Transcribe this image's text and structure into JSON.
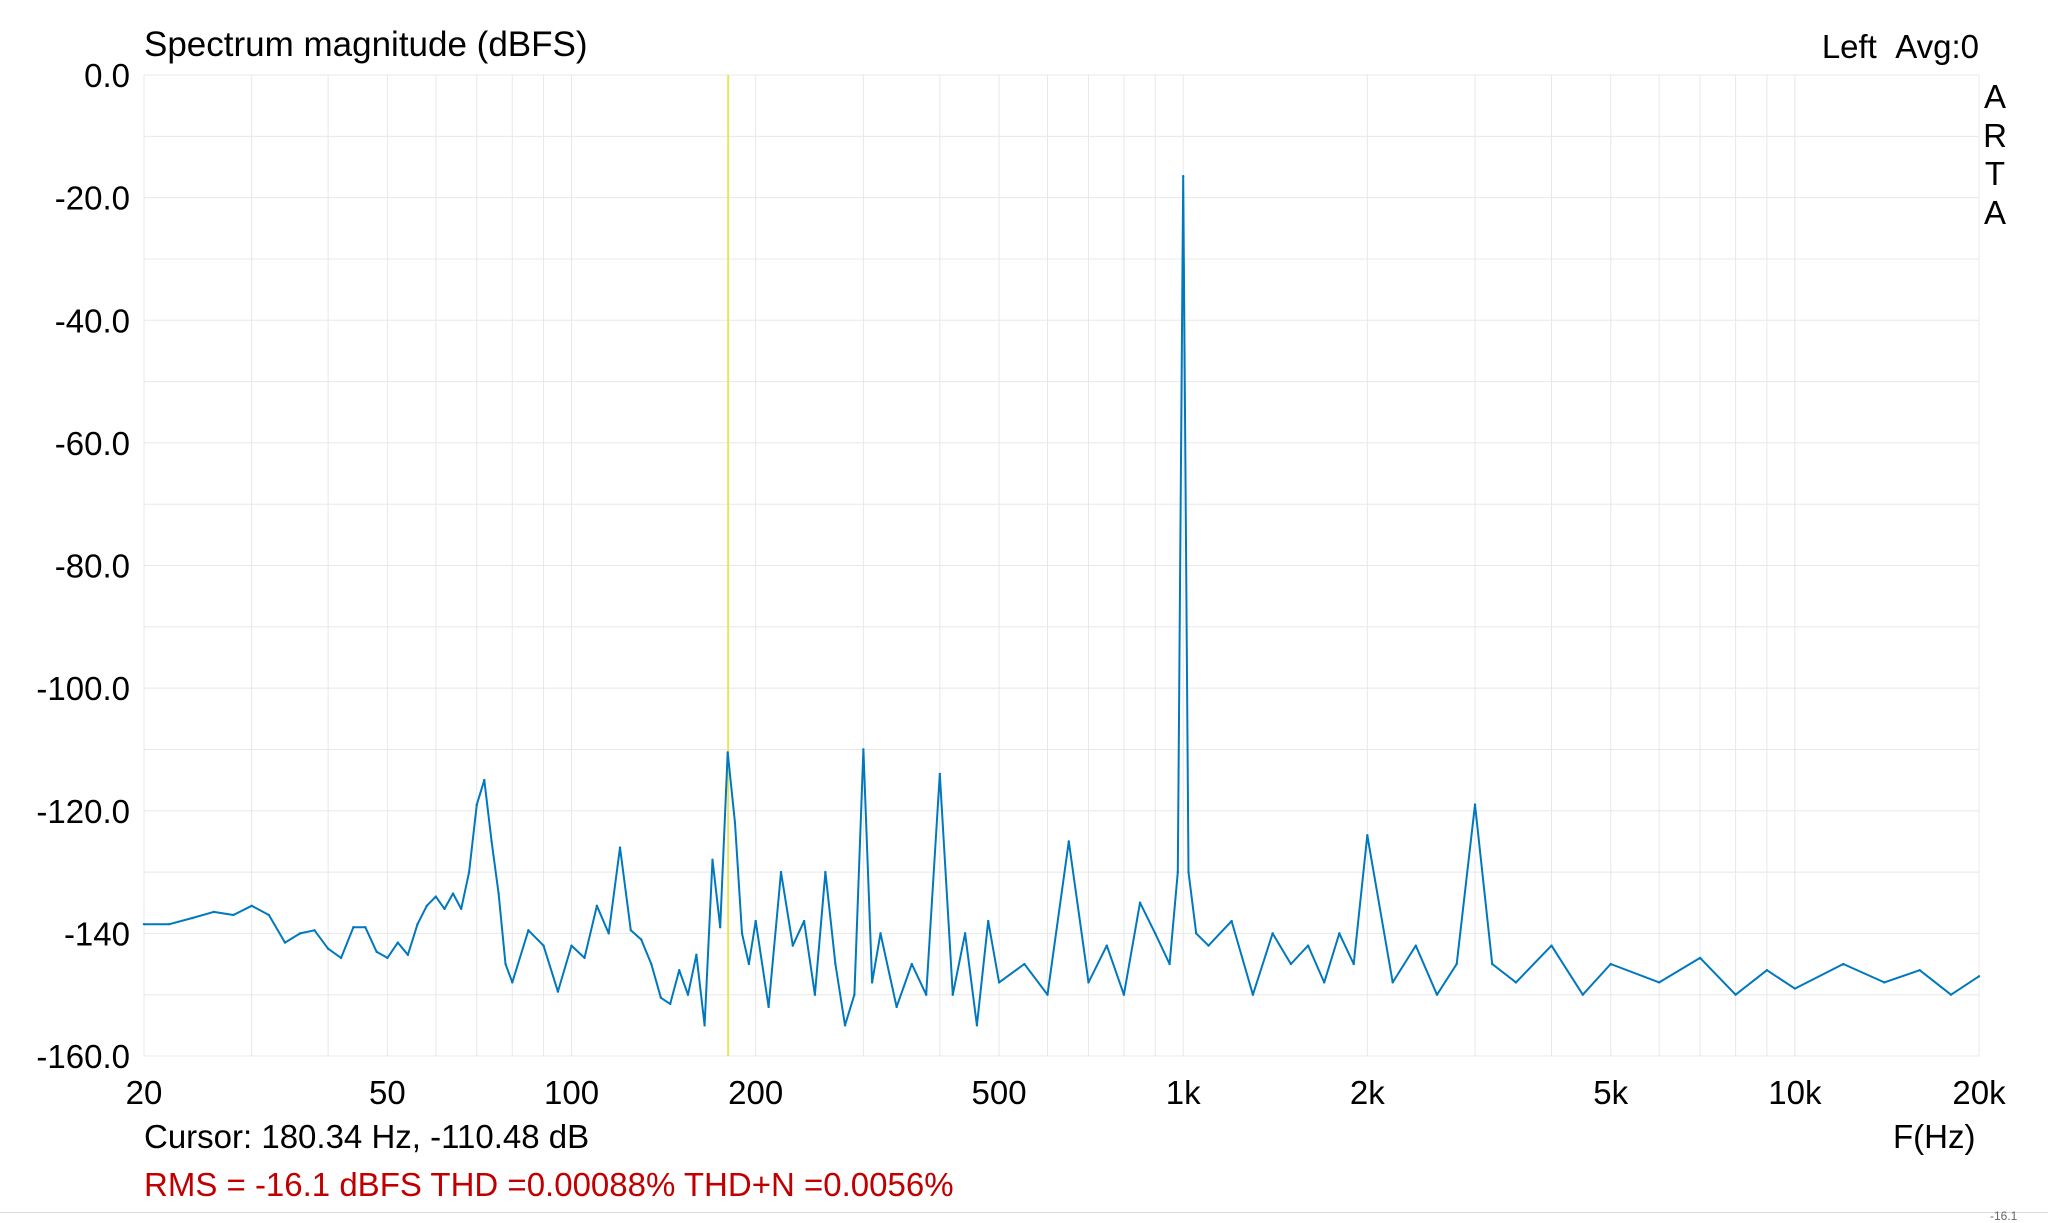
{
  "header": {
    "title": "Spectrum magnitude (dBFS)",
    "channel": "Left",
    "avg": "Avg:0"
  },
  "watermark": [
    "A",
    "R",
    "T",
    "A"
  ],
  "footer": {
    "cursor": "Cursor: 180.34 Hz, -110.48 dB",
    "freq_unit": "F(Hz)",
    "rms_line": "RMS =  -16.1 dBFS THD =0.00088% THD+N =0.0056%",
    "corner_fragment": "-16.1"
  },
  "colors": {
    "trace": "#0078be",
    "cursor": "#e6e65a",
    "grid": "#e8e8e8",
    "plot_bg": "#ffffff",
    "rms_text": "#c00000"
  },
  "chart_data": {
    "type": "line",
    "title": "Spectrum magnitude (dBFS)",
    "xlabel": "F(Hz)",
    "ylabel": "",
    "xscale": "log",
    "xlim": [
      20,
      20000
    ],
    "ylim": [
      -160,
      0
    ],
    "grid": true,
    "yticks": [
      0,
      -20,
      -40,
      -60,
      -80,
      -100,
      -120,
      -140,
      -160
    ],
    "ytick_labels": [
      "0.0",
      "-20.0",
      "-40.0",
      "-60.0",
      "-80.0",
      "-100.0",
      "-120.0",
      "-140",
      "-160.0"
    ],
    "xticks": [
      20,
      50,
      100,
      200,
      500,
      1000,
      2000,
      5000,
      10000,
      20000
    ],
    "xtick_labels": [
      "20",
      "50",
      "100",
      "200",
      "500",
      "1k",
      "2k",
      "5k",
      "10k",
      "20k"
    ],
    "cursor": {
      "x": 180.34,
      "y": -110.48
    },
    "series": [
      {
        "x": [
          20,
          22,
          24,
          26,
          28,
          30,
          32,
          34,
          36,
          38,
          40,
          42,
          44,
          46,
          48,
          50,
          52,
          54,
          56,
          58,
          60,
          62,
          64,
          66,
          68,
          70,
          72,
          74,
          76,
          78,
          80,
          85,
          90,
          95,
          100,
          105,
          110,
          115,
          120,
          125,
          130,
          135,
          140,
          145,
          150,
          155,
          160,
          165,
          170,
          175,
          180,
          185,
          190,
          195,
          200,
          210,
          220,
          230,
          240,
          250,
          260,
          270,
          280,
          290,
          300,
          310,
          320,
          340,
          360,
          380,
          400,
          420,
          440,
          460,
          480,
          500,
          550,
          600,
          650,
          700,
          750,
          800,
          850,
          900,
          950,
          980,
          1000,
          1020,
          1050,
          1100,
          1200,
          1300,
          1400,
          1500,
          1600,
          1700,
          1800,
          1900,
          2000,
          2200,
          2400,
          2600,
          2800,
          3000,
          3200,
          3500,
          4000,
          4500,
          5000,
          6000,
          7000,
          8000,
          9000,
          10000,
          12000,
          14000,
          16000,
          18000,
          20000
        ],
        "y": [
          -138.5,
          -138.5,
          -137.5,
          -136.5,
          -137,
          -135.5,
          -137,
          -141.5,
          -140,
          -139.5,
          -142.5,
          -144,
          -139,
          -139,
          -143,
          -144,
          -141.5,
          -143.5,
          -138.5,
          -135.5,
          -134,
          -136,
          -133.5,
          -136,
          -130,
          -119,
          -115,
          -125,
          -133.5,
          -145,
          -148,
          -139.5,
          -142,
          -149.5,
          -142,
          -144,
          -135.5,
          -140,
          -126,
          -139.5,
          -141,
          -145,
          -150.5,
          -151.5,
          -146,
          -150,
          -143.5,
          -155,
          -128,
          -139,
          -110.5,
          -122,
          -140,
          -145,
          -138,
          -152,
          -130,
          -142,
          -138,
          -150,
          -130,
          -145,
          -155,
          -150,
          -110,
          -148,
          -140,
          -152,
          -145,
          -150,
          -114,
          -150,
          -140,
          -155,
          -138,
          -148,
          -145,
          -150,
          -125,
          -148,
          -142,
          -150,
          -135,
          -140,
          -145,
          -130,
          -16.5,
          -130,
          -140,
          -142,
          -138,
          -150,
          -140,
          -145,
          -142,
          -148,
          -140,
          -145,
          -124,
          -148,
          -142,
          -150,
          -145,
          -119,
          -145,
          -148,
          -142,
          -150,
          -145,
          -148,
          -144,
          -150,
          -146,
          -149,
          -145,
          -148,
          -146,
          -150,
          -147
        ]
      }
    ]
  }
}
